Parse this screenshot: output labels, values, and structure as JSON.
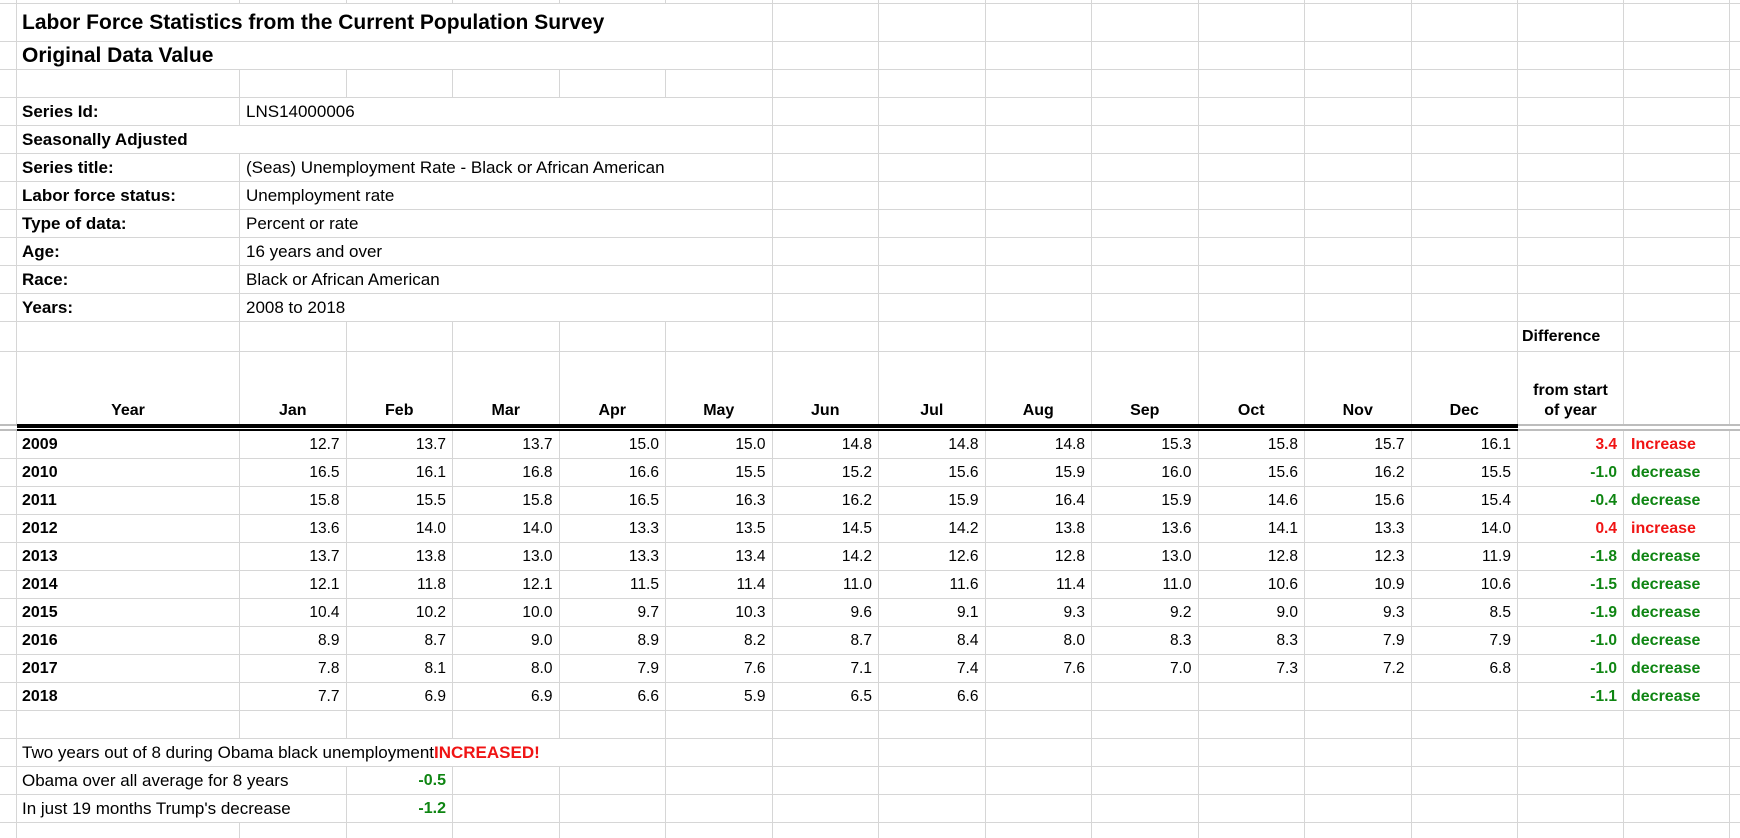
{
  "sheet": {
    "title": "Labor Force Statistics from the Current Population Survey",
    "subtitle": "Original Data Value"
  },
  "metadata": [
    {
      "label": "Series Id:",
      "value": "LNS14000006"
    },
    {
      "label": "Seasonally Adjusted",
      "value": ""
    },
    {
      "label": "Series title:",
      "value": "(Seas) Unemployment Rate - Black or African American"
    },
    {
      "label": "Labor force status:",
      "value": "Unemployment rate"
    },
    {
      "label": "Type of data:",
      "value": "Percent or rate"
    },
    {
      "label": "Age:",
      "value": "16 years and over"
    },
    {
      "label": "Race:",
      "value": "Black or African American"
    },
    {
      "label": "Years:",
      "value": "2008 to 2018"
    }
  ],
  "table": {
    "year_header": "Year",
    "months": [
      "Jan",
      "Feb",
      "Mar",
      "Apr",
      "May",
      "Jun",
      "Jul",
      "Aug",
      "Sep",
      "Oct",
      "Nov",
      "Dec"
    ],
    "diff_header": {
      "top": "Difference",
      "line1": "from start",
      "line2": "of year"
    },
    "rows": [
      {
        "year": "2009",
        "values": [
          "12.7",
          "13.7",
          "13.7",
          "15.0",
          "15.0",
          "14.8",
          "14.8",
          "14.8",
          "15.3",
          "15.8",
          "15.7",
          "16.1"
        ],
        "diff": "3.4",
        "trend": "Increase",
        "color": "red"
      },
      {
        "year": "2010",
        "values": [
          "16.5",
          "16.1",
          "16.8",
          "16.6",
          "15.5",
          "15.2",
          "15.6",
          "15.9",
          "16.0",
          "15.6",
          "16.2",
          "15.5"
        ],
        "diff": "-1.0",
        "trend": "decrease",
        "color": "green"
      },
      {
        "year": "2011",
        "values": [
          "15.8",
          "15.5",
          "15.8",
          "16.5",
          "16.3",
          "16.2",
          "15.9",
          "16.4",
          "15.9",
          "14.6",
          "15.6",
          "15.4"
        ],
        "diff": "-0.4",
        "trend": "decrease",
        "color": "green"
      },
      {
        "year": "2012",
        "values": [
          "13.6",
          "14.0",
          "14.0",
          "13.3",
          "13.5",
          "14.5",
          "14.2",
          "13.8",
          "13.6",
          "14.1",
          "13.3",
          "14.0"
        ],
        "diff": "0.4",
        "trend": "increase",
        "color": "red"
      },
      {
        "year": "2013",
        "values": [
          "13.7",
          "13.8",
          "13.0",
          "13.3",
          "13.4",
          "14.2",
          "12.6",
          "12.8",
          "13.0",
          "12.8",
          "12.3",
          "11.9"
        ],
        "diff": "-1.8",
        "trend": "decrease",
        "color": "green"
      },
      {
        "year": "2014",
        "values": [
          "12.1",
          "11.8",
          "12.1",
          "11.5",
          "11.4",
          "11.0",
          "11.6",
          "11.4",
          "11.0",
          "10.6",
          "10.9",
          "10.6"
        ],
        "diff": "-1.5",
        "trend": "decrease",
        "color": "green"
      },
      {
        "year": "2015",
        "values": [
          "10.4",
          "10.2",
          "10.0",
          "9.7",
          "10.3",
          "9.6",
          "9.1",
          "9.3",
          "9.2",
          "9.0",
          "9.3",
          "8.5"
        ],
        "diff": "-1.9",
        "trend": "decrease",
        "color": "green"
      },
      {
        "year": "2016",
        "values": [
          "8.9",
          "8.7",
          "9.0",
          "8.9",
          "8.2",
          "8.7",
          "8.4",
          "8.0",
          "8.3",
          "8.3",
          "7.9",
          "7.9"
        ],
        "diff": "-1.0",
        "trend": "decrease",
        "color": "green"
      },
      {
        "year": "2017",
        "values": [
          "7.8",
          "8.1",
          "8.0",
          "7.9",
          "7.6",
          "7.1",
          "7.4",
          "7.6",
          "7.0",
          "7.3",
          "7.2",
          "6.8"
        ],
        "diff": "-1.0",
        "trend": "decrease",
        "color": "green"
      },
      {
        "year": "2018",
        "values": [
          "7.7",
          "6.9",
          "6.9",
          "6.6",
          "5.9",
          "6.5",
          "6.6",
          "",
          "",
          "",
          "",
          ""
        ],
        "diff": "-1.1",
        "trend": "decrease",
        "color": "green"
      }
    ]
  },
  "notes": {
    "summary_text": "Two years out of 8 during Obama black unemployment ",
    "summary_highlight": "INCREASED!",
    "obama_label": "Obama  over all average for 8 years",
    "obama_value": "-0.5",
    "trump_label": "In just 19 months Trump's decrease",
    "trump_value": "-1.2"
  },
  "colors": {
    "increase_red": "#f01414",
    "decrease_green": "#0e8512",
    "gridline": "#d6d6d6",
    "double_border_black": "#000000",
    "double_border_gray": "#bdbdbd"
  }
}
